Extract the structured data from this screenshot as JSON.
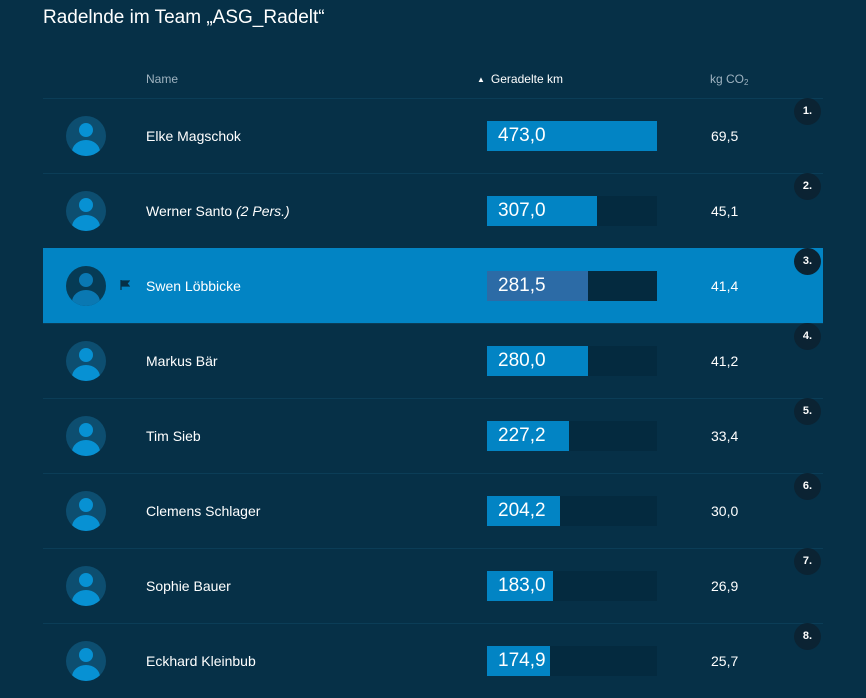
{
  "title": "Radelnde im Team „ASG_Radelt“",
  "columns": {
    "name": "Name",
    "km": "Geradelte km",
    "co2_prefix": "kg CO",
    "co2_sub": "2"
  },
  "max_km": 473.0,
  "rows": [
    {
      "rank": "1.",
      "name": "Elke Magschok",
      "note": "",
      "km": 473.0,
      "km_label": "473,0",
      "co2": "69,5",
      "highlight": false
    },
    {
      "rank": "2.",
      "name": "Werner Santo",
      "note": "(2 Pers.)",
      "km": 307.0,
      "km_label": "307,0",
      "co2": "45,1",
      "highlight": false
    },
    {
      "rank": "3.",
      "name": "Swen Löbbicke",
      "note": "",
      "km": 281.5,
      "km_label": "281,5",
      "co2": "41,4",
      "highlight": true
    },
    {
      "rank": "4.",
      "name": "Markus Bär",
      "note": "",
      "km": 280.0,
      "km_label": "280,0",
      "co2": "41,2",
      "highlight": false
    },
    {
      "rank": "5.",
      "name": "Tim Sieb",
      "note": "",
      "km": 227.2,
      "km_label": "227,2",
      "co2": "33,4",
      "highlight": false
    },
    {
      "rank": "6.",
      "name": "Clemens Schlager",
      "note": "",
      "km": 204.2,
      "km_label": "204,2",
      "co2": "30,0",
      "highlight": false
    },
    {
      "rank": "7.",
      "name": "Sophie Bauer",
      "note": "",
      "km": 183.0,
      "km_label": "183,0",
      "co2": "26,9",
      "highlight": false
    },
    {
      "rank": "8.",
      "name": "Eckhard Kleinbub",
      "note": "",
      "km": 174.9,
      "km_label": "174,9",
      "co2": "25,7",
      "highlight": false
    }
  ],
  "icons": {
    "avatar": "user-avatar-icon",
    "flag": "flag-icon",
    "sort": "sort-ascending-icon"
  },
  "colors": {
    "background": "#063047",
    "accent": "#0284c4",
    "bar_track": "#042a3f",
    "highlight_fill": "#2c6ba6"
  }
}
